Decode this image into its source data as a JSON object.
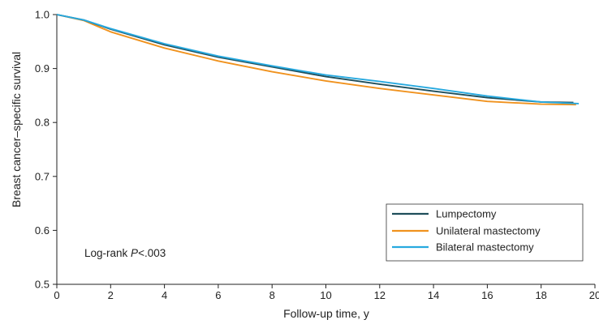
{
  "chart_data": {
    "type": "line",
    "xlabel": "Follow-up time, y",
    "ylabel": "Breast cancer–specific survival",
    "xlim": [
      0,
      20
    ],
    "ylim": [
      0.5,
      1.0
    ],
    "xticks": [
      "0",
      "2",
      "4",
      "6",
      "8",
      "10",
      "12",
      "14",
      "16",
      "18",
      "20"
    ],
    "yticks": [
      "0.5",
      "0.6",
      "0.7",
      "0.8",
      "0.9",
      "1.0"
    ],
    "annotation": {
      "prefix": "Log-rank ",
      "italic": "P",
      "suffix": "<.003"
    },
    "legend_position": "bottom-right",
    "grid": false,
    "series": [
      {
        "name": "Lumpectomy",
        "color": "#1f4e5a",
        "points": [
          [
            0,
            1.0
          ],
          [
            1,
            0.99
          ],
          [
            2,
            0.973
          ],
          [
            4,
            0.944
          ],
          [
            6,
            0.921
          ],
          [
            8,
            0.903
          ],
          [
            10,
            0.885
          ],
          [
            12,
            0.871
          ],
          [
            14,
            0.858
          ],
          [
            16,
            0.846
          ],
          [
            18,
            0.838
          ],
          [
            19.2,
            0.837
          ]
        ]
      },
      {
        "name": "Unilateral mastectomy",
        "color": "#f0921e",
        "points": [
          [
            0,
            1.0
          ],
          [
            1,
            0.989
          ],
          [
            2,
            0.968
          ],
          [
            4,
            0.938
          ],
          [
            6,
            0.914
          ],
          [
            8,
            0.894
          ],
          [
            10,
            0.877
          ],
          [
            12,
            0.863
          ],
          [
            14,
            0.851
          ],
          [
            16,
            0.839
          ],
          [
            18,
            0.834
          ],
          [
            19.3,
            0.833
          ]
        ]
      },
      {
        "name": "Bilateral mastectomy",
        "color": "#27a9df",
        "points": [
          [
            0,
            1.0
          ],
          [
            1,
            0.99
          ],
          [
            2,
            0.974
          ],
          [
            4,
            0.946
          ],
          [
            6,
            0.923
          ],
          [
            8,
            0.905
          ],
          [
            10,
            0.888
          ],
          [
            12,
            0.876
          ],
          [
            14,
            0.863
          ],
          [
            16,
            0.849
          ],
          [
            18,
            0.838
          ],
          [
            19.4,
            0.835
          ]
        ]
      }
    ]
  }
}
